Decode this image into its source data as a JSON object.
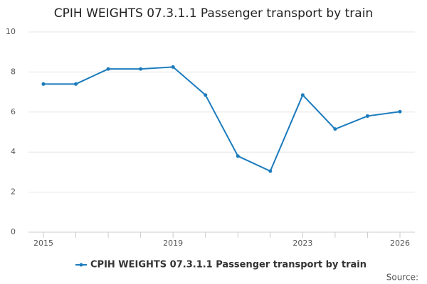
{
  "chart_data": {
    "type": "line",
    "title": "CPIH WEIGHTS 07.3.1.1 Passenger transport by train",
    "x": [
      2015,
      2016,
      2017,
      2018,
      2019,
      2020,
      2021,
      2022,
      2023,
      2024,
      2025,
      2026
    ],
    "xticks": [
      2015,
      2019,
      2023,
      2026
    ],
    "series": [
      {
        "name": "CPIH WEIGHTS 07.3.1.1 Passenger transport by train",
        "color": "#1b7bbd",
        "values": [
          7.4,
          7.4,
          8.15,
          8.15,
          8.25,
          6.85,
          3.8,
          3.05,
          6.85,
          5.15,
          5.8,
          6.02
        ]
      }
    ],
    "ylim": [
      0,
      10
    ],
    "yticks": [
      0,
      2,
      4,
      6,
      8,
      10
    ],
    "grid": true,
    "legend": "bottom",
    "source": "Source:"
  }
}
